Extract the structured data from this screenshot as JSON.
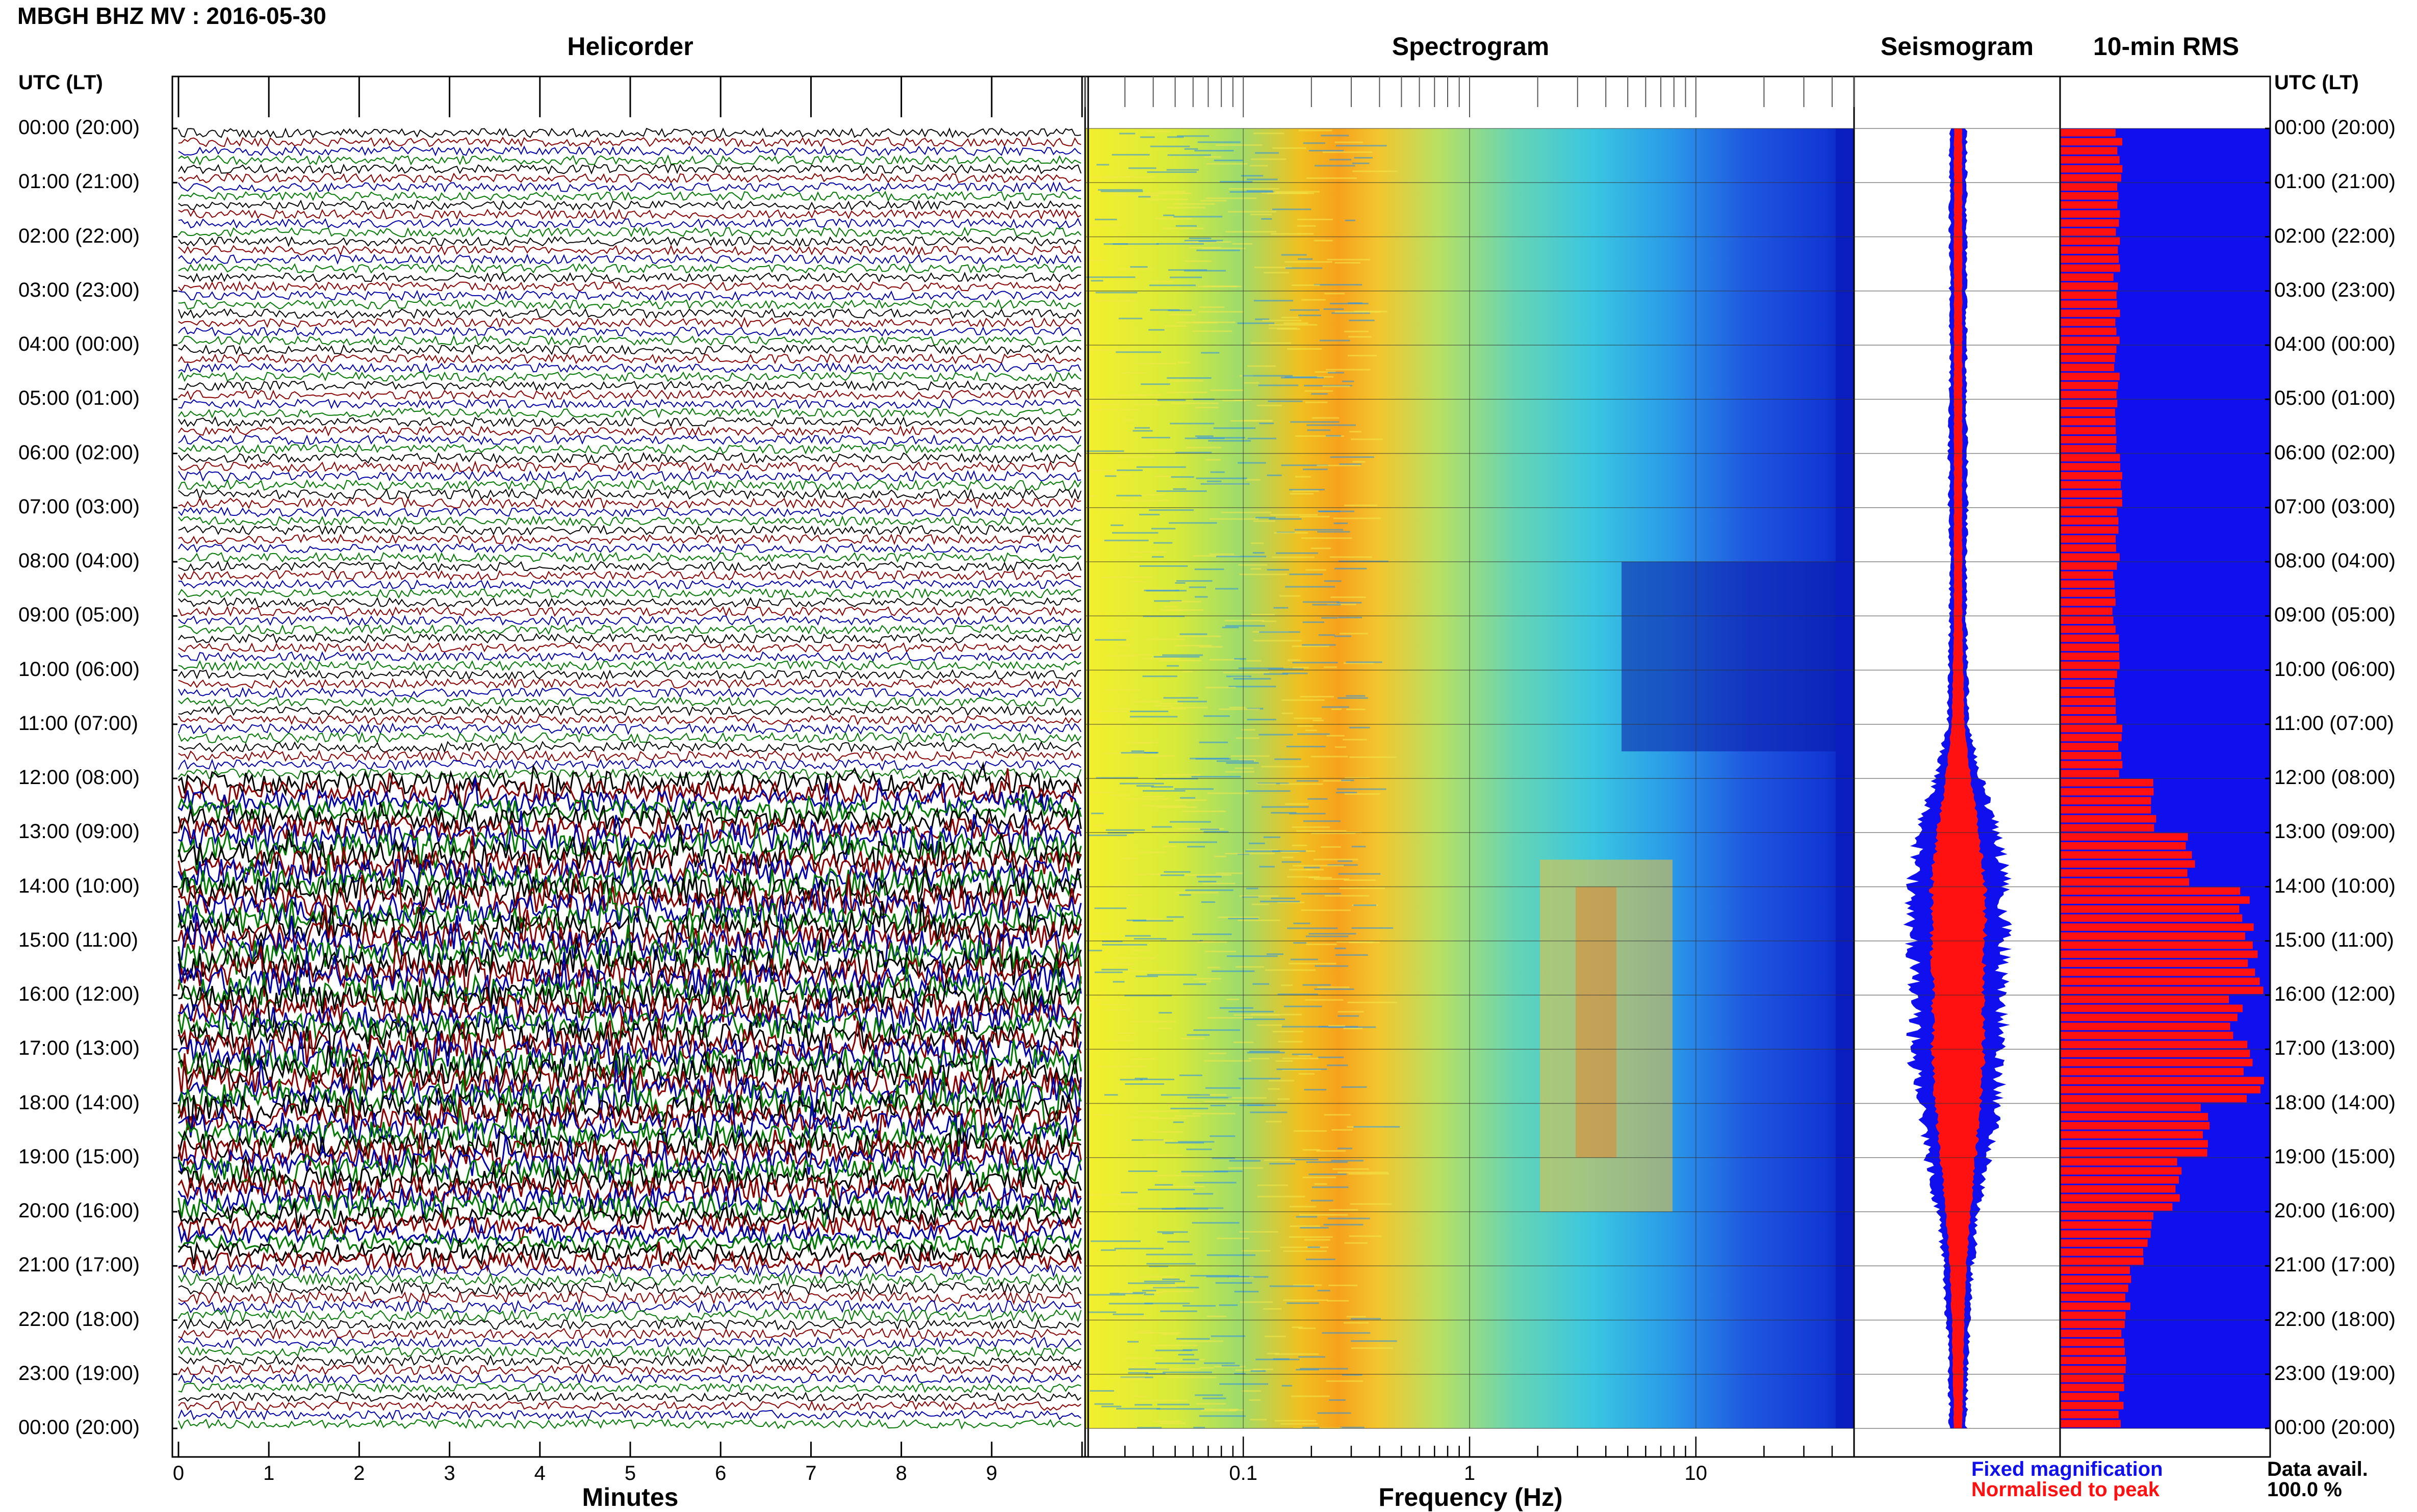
{
  "figure": {
    "title": "MBGH BHZ MV : 2016-05-30",
    "panel_titles": [
      "Helicorder",
      "Spectrogram",
      "Seismogram",
      "10-min RMS"
    ],
    "utc_label": "UTC (LT)",
    "row_labels": [
      "00:00 (20:00)",
      "01:00 (21:00)",
      "02:00 (22:00)",
      "03:00 (23:00)",
      "04:00 (00:00)",
      "05:00 (01:00)",
      "06:00 (02:00)",
      "07:00 (03:00)",
      "08:00 (04:00)",
      "09:00 (05:00)",
      "10:00 (06:00)",
      "11:00 (07:00)",
      "12:00 (08:00)",
      "13:00 (09:00)",
      "14:00 (10:00)",
      "15:00 (11:00)",
      "16:00 (12:00)",
      "17:00 (13:00)",
      "18:00 (14:00)",
      "19:00 (15:00)",
      "20:00 (16:00)",
      "21:00 (17:00)",
      "22:00 (18:00)",
      "23:00 (19:00)",
      "00:00 (20:00)"
    ],
    "helicorder_xlabel": "Minutes",
    "helicorder_xticks": [
      "0",
      "1",
      "2",
      "3",
      "4",
      "5",
      "6",
      "7",
      "8",
      "9"
    ],
    "spectrogram_xlabel": "Frequency (Hz)",
    "spectrogram_xticks": [
      "0.1",
      "1",
      "10"
    ],
    "legend": {
      "fixed": "Fixed magnification",
      "normalised": "Normalised to peak",
      "fixed_color": "#1010ee",
      "normalised_color": "#ff1111"
    },
    "data_avail_label": "Data avail.",
    "data_avail_value": "100.0 %",
    "helicorder_colors": [
      "#000000",
      "#8b0000",
      "#0000aa",
      "#007a00"
    ]
  },
  "chart_data": [
    {
      "type": "line",
      "name": "helicorder",
      "x_range": [
        0,
        10
      ],
      "rows_per_hour": 6,
      "row_amplitude_per_hour": [
        0.9,
        0.9,
        0.9,
        0.9,
        0.9,
        0.9,
        1.0,
        0.9,
        0.9,
        0.9,
        0.9,
        1.0,
        2.2,
        2.8,
        3.0,
        3.0,
        2.9,
        3.0,
        2.7,
        2.5,
        1.8,
        1.2,
        1.0,
        0.9
      ]
    },
    {
      "type": "heatmap",
      "name": "spectrogram",
      "x_scale": "log",
      "x_range": [
        0.02,
        50
      ],
      "y_range_hours": [
        0,
        24
      ]
    },
    {
      "type": "area",
      "name": "seismogram",
      "series": [
        "Fixed magnification",
        "Normalised to peak"
      ],
      "hours": [
        0,
        1,
        2,
        3,
        4,
        5,
        6,
        7,
        8,
        9,
        10,
        11,
        12,
        13,
        14,
        15,
        16,
        17,
        18,
        19,
        20,
        21,
        22,
        23,
        24
      ],
      "fixed_halfwidth": [
        0.08,
        0.08,
        0.08,
        0.08,
        0.08,
        0.08,
        0.09,
        0.09,
        0.08,
        0.08,
        0.09,
        0.1,
        0.22,
        0.38,
        0.46,
        0.45,
        0.42,
        0.44,
        0.38,
        0.3,
        0.2,
        0.14,
        0.11,
        0.09,
        0.08
      ],
      "normalised_halfwidth": [
        0.04,
        0.04,
        0.04,
        0.04,
        0.04,
        0.04,
        0.04,
        0.04,
        0.04,
        0.04,
        0.05,
        0.06,
        0.12,
        0.2,
        0.26,
        0.26,
        0.24,
        0.25,
        0.22,
        0.17,
        0.12,
        0.08,
        0.06,
        0.05,
        0.04
      ]
    },
    {
      "type": "bar",
      "name": "10-min RMS",
      "orientation": "horizontal",
      "bins_per_hour": 6,
      "values_per_hour": [
        0.28,
        0.27,
        0.27,
        0.27,
        0.27,
        0.27,
        0.28,
        0.27,
        0.26,
        0.27,
        0.27,
        0.28,
        0.45,
        0.62,
        0.9,
        0.95,
        0.85,
        0.92,
        0.7,
        0.55,
        0.42,
        0.33,
        0.3,
        0.29
      ],
      "xlim": [
        0,
        1
      ]
    }
  ]
}
